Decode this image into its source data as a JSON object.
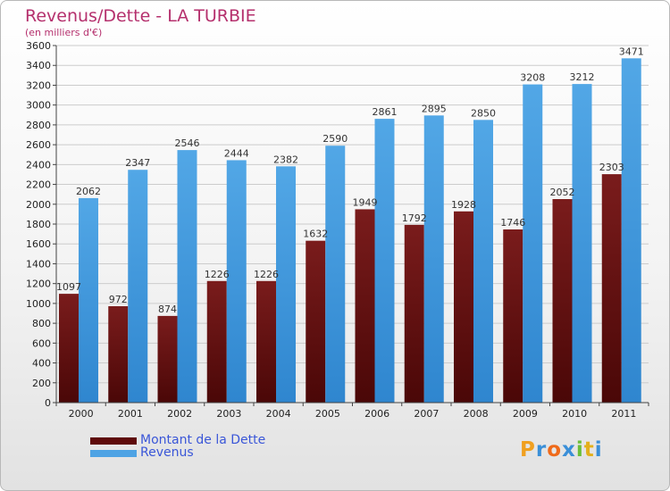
{
  "header": {
    "title": "Revenus/Dette - LA TURBIE",
    "subtitle": "(en milliers d'€)"
  },
  "colors": {
    "dette": "#7a1c1c",
    "dette_dark": "#4a0707",
    "revenus": "#52a7e6",
    "revenus_dark": "#2f86cf",
    "grid": "#cccccc"
  },
  "legend": {
    "items": [
      {
        "label": "Montant de la Dette",
        "color": "#5e0a0a"
      },
      {
        "label": "Revenus",
        "color": "#4ea3e4"
      }
    ]
  },
  "logo": {
    "letters": [
      "P",
      "r",
      "o",
      "x",
      "i",
      "t",
      "i"
    ],
    "colors": [
      "#f0a020",
      "#3a8fd8",
      "#ef6a1a",
      "#3a8fd8",
      "#6bbf3a",
      "#e3b01c",
      "#3a8fd8"
    ]
  },
  "chart_data": {
    "type": "bar",
    "title": "Revenus/Dette - LA TURBIE",
    "subtitle": "(en milliers d'€)",
    "categories": [
      "2000",
      "2001",
      "2002",
      "2003",
      "2004",
      "2005",
      "2006",
      "2007",
      "2008",
      "2009",
      "2010",
      "2011"
    ],
    "series": [
      {
        "name": "Montant de la Dette",
        "values": [
          1097,
          972,
          874,
          1226,
          1226,
          1632,
          1949,
          1792,
          1928,
          1746,
          2052,
          2303
        ]
      },
      {
        "name": "Revenus",
        "values": [
          2062,
          2347,
          2546,
          2444,
          2382,
          2590,
          2861,
          2895,
          2850,
          3208,
          3212,
          3471
        ]
      }
    ],
    "yticks": [
      0,
      200,
      400,
      600,
      800,
      1000,
      1200,
      1400,
      1600,
      1800,
      2000,
      2200,
      2400,
      2600,
      2800,
      3000,
      3200,
      3400,
      3600
    ],
    "ylim": [
      0,
      3600
    ],
    "grid": true,
    "legend_position": "bottom-left"
  }
}
